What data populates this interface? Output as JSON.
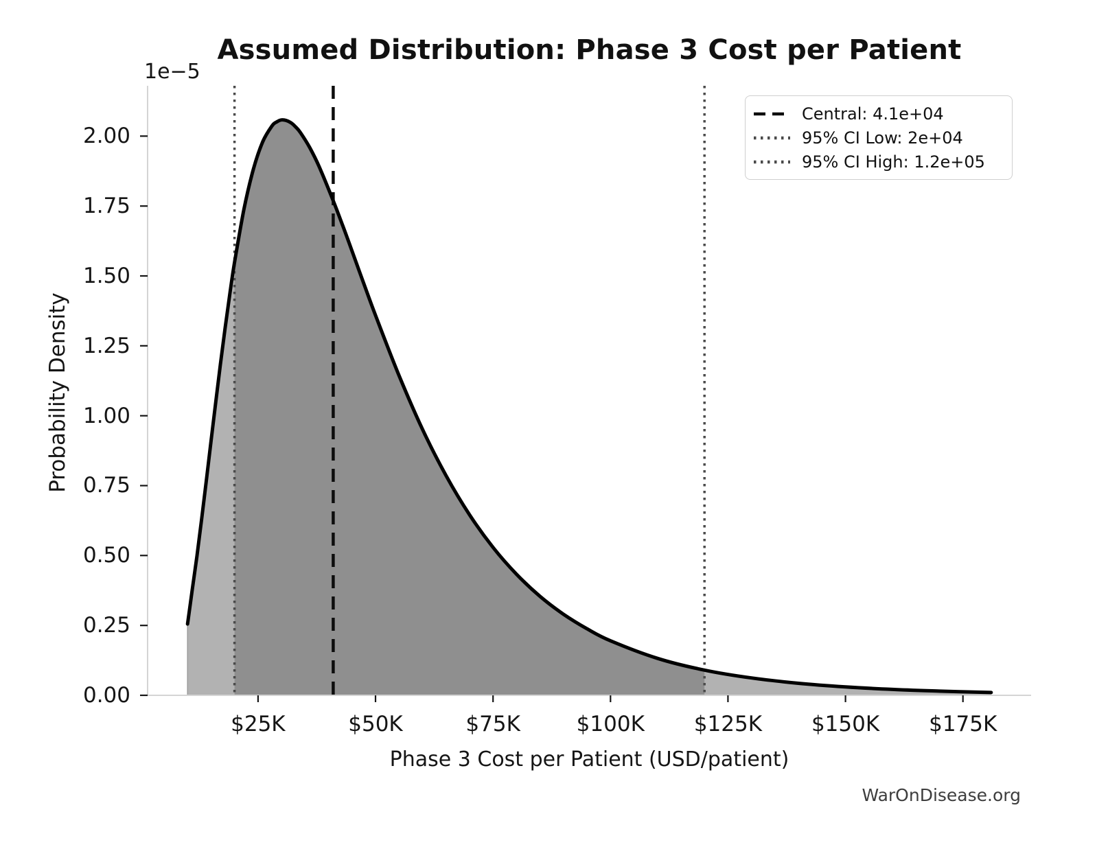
{
  "title": "Assumed Distribution: Phase 3 Cost per Patient",
  "watermark": "WarOnDisease.org",
  "axes": {
    "xlabel": "Phase 3 Cost per Patient (USD/patient)",
    "ylabel": "Probability Density",
    "y_scale_label": "1e−5",
    "x_tick_labels": [
      "$25K",
      "$50K",
      "$75K",
      "$100K",
      "$125K",
      "$150K",
      "$175K"
    ],
    "x_tick_values_usd": [
      25000,
      50000,
      75000,
      100000,
      125000,
      150000,
      175000
    ],
    "y_tick_labels": [
      "0.00",
      "0.25",
      "0.50",
      "0.75",
      "1.00",
      "1.25",
      "1.50",
      "1.75",
      "2.00"
    ],
    "y_tick_values_1e5": [
      0,
      0.25,
      0.5,
      0.75,
      1.0,
      1.25,
      1.5,
      1.75,
      2.0
    ],
    "xlim_usd": [
      1500,
      189500
    ],
    "ylim_1e5": [
      0,
      2.18
    ]
  },
  "legend": {
    "items": [
      {
        "label": "Central: 4.1e+04",
        "line_style": "dashed",
        "color": "#0d0d0d"
      },
      {
        "label": "95% CI Low: 2e+04",
        "line_style": "dotted",
        "color": "#4a4a4a"
      },
      {
        "label": "95% CI High: 1.2e+05",
        "line_style": "dotted",
        "color": "#4a4a4a"
      }
    ]
  },
  "chart_data": {
    "type": "area",
    "title": "Assumed Distribution: Phase 3 Cost per Patient",
    "xlabel": "Phase 3 Cost per Patient (USD/patient)",
    "ylabel": "Probability Density",
    "y_scale_factor": "1e-5",
    "distribution": "lognormal",
    "central_usd": 41000,
    "ci95_low_usd": 20000,
    "ci95_high_usd": 120000,
    "peak_density_1e5": 2.06,
    "peak_at_usd": 30000,
    "xlim_usd": [
      1500,
      189500
    ],
    "ylim_1e5": [
      0,
      2.18
    ],
    "grid": false,
    "legend_position": "upper right",
    "curve": {
      "x_usd_thousands": [
        10,
        11,
        12,
        13,
        14,
        15,
        16,
        17,
        18,
        19,
        20,
        22,
        24,
        26,
        28,
        29,
        30,
        31,
        32,
        33,
        34,
        36,
        38,
        41,
        43,
        45,
        47.5,
        50,
        55,
        60,
        65,
        70,
        75,
        80,
        85,
        90,
        95,
        100,
        110,
        120,
        130,
        140,
        150,
        160,
        170,
        181
      ],
      "density_1e5": [
        0.255,
        0.377,
        0.498,
        0.63,
        0.769,
        0.909,
        1.049,
        1.185,
        1.315,
        1.436,
        1.548,
        1.738,
        1.881,
        1.98,
        2.037,
        2.051,
        2.058,
        2.056,
        2.048,
        2.033,
        2.013,
        1.959,
        1.891,
        1.769,
        1.681,
        1.589,
        1.473,
        1.359,
        1.144,
        0.951,
        0.786,
        0.646,
        0.529,
        0.433,
        0.354,
        0.29,
        0.238,
        0.195,
        0.132,
        0.09,
        0.062,
        0.043,
        0.03,
        0.021,
        0.015,
        0.01
      ]
    },
    "colors": {
      "curve": "#000000",
      "fill_outer": "#b2b2b2",
      "fill_ci": "#8f8f8f",
      "central_line": "#0d0d0d",
      "ci_line": "#4a4a4a",
      "spine": "#d4d4d4",
      "tick": "#151515"
    }
  }
}
